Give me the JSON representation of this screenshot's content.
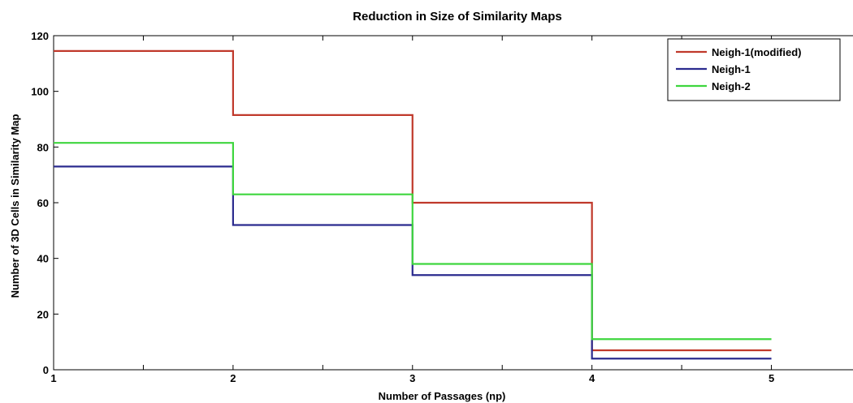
{
  "chart_data": {
    "type": "line",
    "step": "post",
    "title": "Reduction in Size of Similarity Maps",
    "xlabel": "Number of Passages (np)",
    "ylabel": "Number of 3D Cells in Similarity Map",
    "xlim": [
      1,
      5.5
    ],
    "ylim": [
      0,
      120
    ],
    "xticks": [
      1,
      2,
      3,
      4,
      5
    ],
    "yticks": [
      0,
      20,
      40,
      60,
      80,
      100,
      120
    ],
    "grid": false,
    "legend_position": "top-right",
    "series": [
      {
        "name": "Neigh-1(modified)",
        "color": "#c0392b",
        "x": [
          1,
          2,
          3,
          4,
          5
        ],
        "y": [
          114.5,
          91.5,
          60,
          7,
          7
        ]
      },
      {
        "name": "Neigh-1",
        "color": "#2b2b8f",
        "x": [
          1,
          2,
          3,
          4,
          5
        ],
        "y": [
          73,
          52,
          34,
          4,
          4
        ]
      },
      {
        "name": "Neigh-2",
        "color": "#3ed63e",
        "x": [
          1,
          2,
          3,
          4,
          5
        ],
        "y": [
          81.5,
          63,
          38,
          11,
          11
        ]
      }
    ]
  }
}
